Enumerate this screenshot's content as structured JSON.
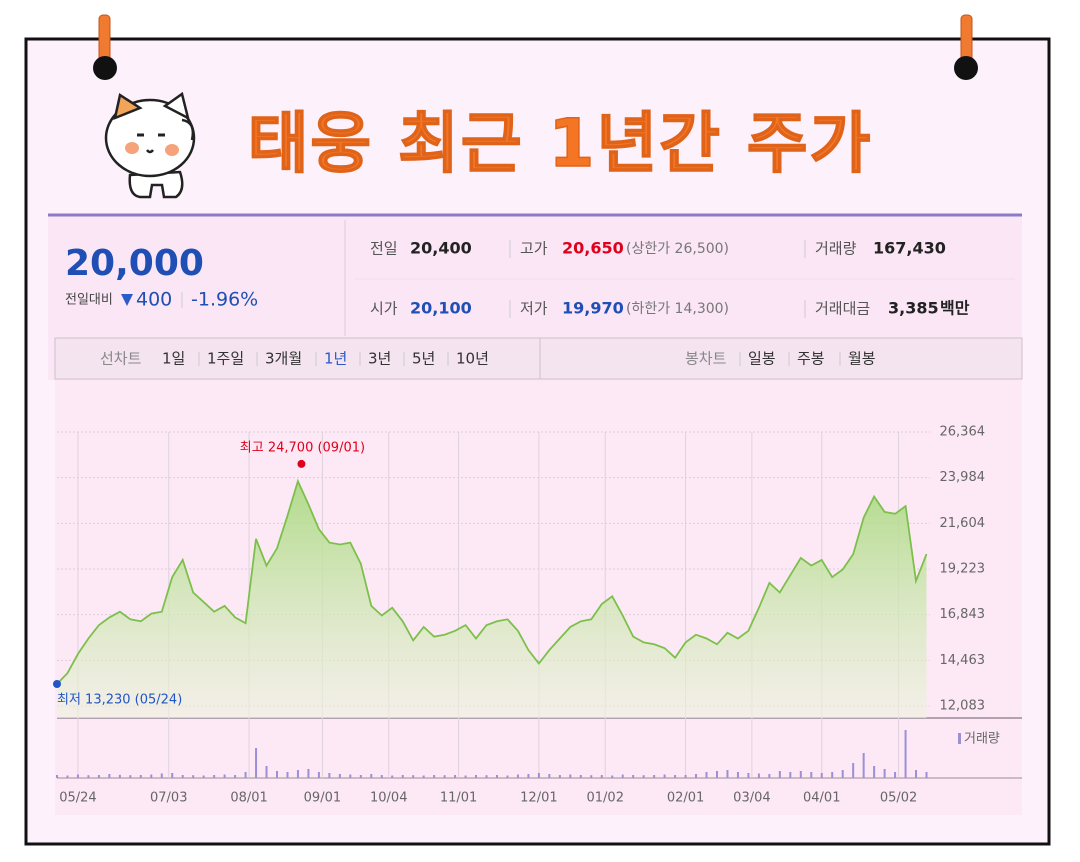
{
  "title": "태웅 최근 1년간 주가",
  "quote": {
    "price": "20,000",
    "change_label": "전일대비",
    "change": "400",
    "change_pct": "-1.96%"
  },
  "info": [
    {
      "label": "전일",
      "value": "20,400",
      "color": "#222222"
    },
    {
      "label": "고가",
      "value": "20,650",
      "note": "(상한가 26,500)",
      "color": "#e0001b"
    },
    {
      "label": "거래량",
      "value": "167,430",
      "color": "#222222"
    },
    {
      "label": "시가",
      "value": "20,100",
      "color": "#1f4fb4"
    },
    {
      "label": "저가",
      "value": "19,970",
      "note": "(하한가 14,300)",
      "color": "#1f4fb4"
    },
    {
      "label": "거래대금",
      "value": "3,385",
      "unit": "백만",
      "color": "#222222"
    }
  ],
  "tabs": {
    "line_label": "선차트",
    "line": [
      "1일",
      "1주일",
      "3개월",
      "1년",
      "3년",
      "5년",
      "10년"
    ],
    "active": 3,
    "candle_label": "봉차트",
    "candle": [
      "일봉",
      "주봉",
      "월봉"
    ]
  },
  "chart_data": {
    "type": "line",
    "color": "#7cc04b",
    "grid": true,
    "x": [
      0,
      3,
      6,
      9,
      12,
      15,
      18,
      21,
      24,
      27,
      30,
      33,
      36,
      39,
      42,
      45,
      48,
      51,
      54,
      57,
      60,
      63,
      66,
      69,
      72,
      75,
      78,
      81,
      84,
      87,
      90,
      93,
      96,
      99,
      102,
      105,
      108,
      111,
      114,
      117,
      120,
      123,
      126,
      129,
      132,
      135,
      138,
      141,
      144,
      147,
      150,
      153,
      156,
      159,
      162,
      165,
      168,
      171,
      174,
      177,
      180,
      183,
      186,
      189,
      192,
      195,
      198,
      201,
      204,
      207,
      210,
      213,
      216,
      219,
      222,
      225,
      228,
      231,
      234,
      237,
      240,
      243,
      246,
      249
    ],
    "values": [
      13230,
      13800,
      14800,
      15600,
      16300,
      16700,
      17000,
      16600,
      16500,
      16900,
      17000,
      18800,
      19700,
      18000,
      17500,
      17000,
      17300,
      16700,
      16400,
      20800,
      19400,
      20300,
      22000,
      23800,
      22600,
      21300,
      20600,
      20500,
      20600,
      19500,
      17300,
      16800,
      17200,
      16500,
      15500,
      16200,
      15700,
      15800,
      16000,
      16300,
      15600,
      16300,
      16500,
      16600,
      16000,
      15000,
      14300,
      15000,
      15600,
      16200,
      16500,
      16600,
      17400,
      17800,
      16800,
      15700,
      15400,
      15300,
      15100,
      14600,
      15400,
      15800,
      15600,
      15300,
      15900,
      15600,
      16000,
      17200,
      18500,
      18000,
      18900,
      19800,
      19400,
      19700,
      18800,
      19200,
      20000,
      21900,
      23000,
      22200,
      22100,
      22500,
      18600,
      20000
    ],
    "xlim": [
      0,
      250
    ],
    "xticks": [
      {
        "value": 6,
        "label": "05/24"
      },
      {
        "value": 32,
        "label": "07/03"
      },
      {
        "value": 55,
        "label": "08/01"
      },
      {
        "value": 76,
        "label": "09/01"
      },
      {
        "value": 95,
        "label": "10/04"
      },
      {
        "value": 115,
        "label": "11/01"
      },
      {
        "value": 138,
        "label": "12/01"
      },
      {
        "value": 157,
        "label": "01/02"
      },
      {
        "value": 180,
        "label": "02/01"
      },
      {
        "value": 199,
        "label": "03/04"
      },
      {
        "value": 219,
        "label": "04/01"
      },
      {
        "value": 241,
        "label": "05/02"
      }
    ],
    "ylim": [
      12083,
      26364
    ],
    "yticks": [
      {
        "value": 12083,
        "label": "12,083"
      },
      {
        "value": 14463,
        "label": "14,463"
      },
      {
        "value": 16843,
        "label": "16,843"
      },
      {
        "value": 19223,
        "label": "19,223"
      },
      {
        "value": 21604,
        "label": "21,604"
      },
      {
        "value": 23984,
        "label": "23,984"
      },
      {
        "value": 26364,
        "label": "26,364"
      }
    ],
    "annotations": [
      {
        "text": "최고 24,700 (09/01)",
        "x": 70,
        "value": 24700,
        "color": "#e0001b"
      },
      {
        "text": "최저 13,230 (05/24)",
        "x": 0,
        "value": 13230,
        "color": "#2155c8"
      }
    ],
    "volume": {
      "label": "거래량",
      "color": "#9b8fd6",
      "ylim": [
        0,
        500000
      ],
      "values": [
        30000,
        25000,
        35000,
        28000,
        30000,
        40000,
        32000,
        28000,
        30000,
        35000,
        45000,
        50000,
        30000,
        28000,
        25000,
        30000,
        35000,
        30000,
        60000,
        300000,
        120000,
        70000,
        60000,
        80000,
        90000,
        60000,
        50000,
        40000,
        35000,
        30000,
        40000,
        30000,
        25000,
        30000,
        28000,
        25000,
        30000,
        28000,
        30000,
        25000,
        30000,
        28000,
        30000,
        25000,
        35000,
        40000,
        50000,
        40000,
        30000,
        35000,
        30000,
        28000,
        30000,
        25000,
        35000,
        30000,
        28000,
        30000,
        35000,
        30000,
        30000,
        40000,
        60000,
        70000,
        80000,
        60000,
        50000,
        45000,
        40000,
        70000,
        60000,
        70000,
        60000,
        50000,
        60000,
        80000,
        150000,
        250000,
        120000,
        90000,
        60000,
        480000,
        80000,
        60000
      ]
    }
  }
}
